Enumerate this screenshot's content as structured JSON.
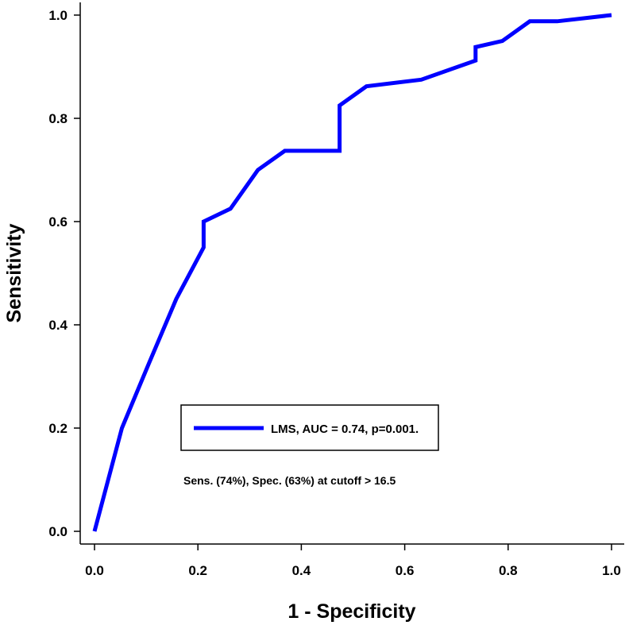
{
  "chart_data": {
    "type": "line",
    "title": "",
    "xlabel": "1 - Specificity",
    "ylabel": "Sensitivity",
    "xlim": [
      0.0,
      1.0
    ],
    "ylim": [
      0.0,
      1.0
    ],
    "grid": false,
    "x_ticks": [
      "0.0",
      "0.2",
      "0.4",
      "0.6",
      "0.8",
      "1.0"
    ],
    "y_ticks": [
      "0.0",
      "0.2",
      "0.4",
      "0.6",
      "0.8",
      "1.0"
    ],
    "legend_position": "center-left",
    "series": [
      {
        "name": "LMS, AUC = 0.74, p=0.001.",
        "color": "#0000ff",
        "x": [
          0.0,
          0.053,
          0.105,
          0.158,
          0.211,
          0.211,
          0.263,
          0.316,
          0.368,
          0.474,
          0.474,
          0.526,
          0.632,
          0.737,
          0.737,
          0.789,
          0.842,
          0.895,
          1.0
        ],
        "y": [
          0.0,
          0.2,
          0.325,
          0.45,
          0.55,
          0.6,
          0.625,
          0.7,
          0.737,
          0.737,
          0.825,
          0.862,
          0.875,
          0.912,
          0.938,
          0.95,
          0.988,
          0.988,
          1.0
        ]
      }
    ],
    "annotations": [
      "Sens. (74%), Spec. (63%) at cutoff > 16.5"
    ]
  }
}
